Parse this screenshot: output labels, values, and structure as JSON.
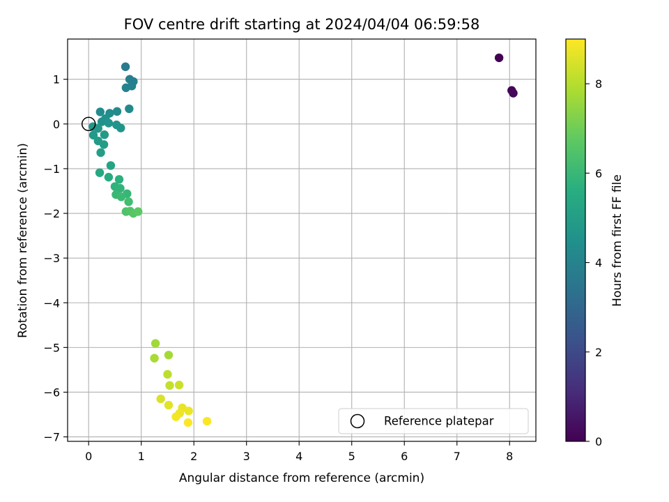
{
  "chart_data": {
    "type": "scatter",
    "title": "FOV centre drift starting at 2024/04/04 06:59:58",
    "xlabel": "Angular distance from reference (arcmin)",
    "ylabel": "Rotation from reference (arcmin)",
    "xlim": [
      -0.4,
      8.5
    ],
    "ylim": [
      -7.1,
      1.9
    ],
    "xticks": [
      "0",
      "1",
      "2",
      "3",
      "4",
      "5",
      "6",
      "7",
      "8"
    ],
    "yticks": [
      "1",
      "0",
      "−1",
      "−2",
      "−3",
      "−4",
      "−5",
      "−6",
      "−7"
    ],
    "grid": true,
    "colormap": "viridis",
    "colorbar": {
      "label": "Hours from first FF file",
      "range": [
        0,
        9
      ],
      "ticks": [
        "0",
        "2",
        "4",
        "6",
        "8"
      ]
    },
    "legend": {
      "location": "lower-right",
      "entries": [
        {
          "label": "Reference platepar",
          "marker": "open-circle"
        }
      ]
    },
    "reference_point": {
      "x": 0,
      "y": 0
    },
    "points": [
      {
        "x": 7.8,
        "y": 1.48,
        "hours": 0.0
      },
      {
        "x": 8.04,
        "y": 0.75,
        "hours": 0.1
      },
      {
        "x": 8.07,
        "y": 0.69,
        "hours": 0.15
      },
      {
        "x": 0.7,
        "y": 1.28,
        "hours": 3.7
      },
      {
        "x": 0.78,
        "y": 1.0,
        "hours": 3.8
      },
      {
        "x": 0.85,
        "y": 0.95,
        "hours": 3.85
      },
      {
        "x": 0.82,
        "y": 0.85,
        "hours": 3.9
      },
      {
        "x": 0.71,
        "y": 0.81,
        "hours": 3.95
      },
      {
        "x": 0.22,
        "y": 0.27,
        "hours": 4.3
      },
      {
        "x": 0.4,
        "y": 0.24,
        "hours": 4.35
      },
      {
        "x": 0.54,
        "y": 0.28,
        "hours": 4.3
      },
      {
        "x": 0.77,
        "y": 0.34,
        "hours": 4.25
      },
      {
        "x": 0.32,
        "y": 0.12,
        "hours": 4.5
      },
      {
        "x": 0.25,
        "y": 0.05,
        "hours": 4.55
      },
      {
        "x": 0.38,
        "y": 0.02,
        "hours": 4.6
      },
      {
        "x": 0.53,
        "y": -0.02,
        "hours": 4.6
      },
      {
        "x": 0.61,
        "y": -0.09,
        "hours": 4.65
      },
      {
        "x": 0.08,
        "y": -0.06,
        "hours": 4.7
      },
      {
        "x": 0.18,
        "y": -0.1,
        "hours": 4.75
      },
      {
        "x": 0.09,
        "y": -0.25,
        "hours": 4.8
      },
      {
        "x": 0.3,
        "y": -0.24,
        "hours": 4.85
      },
      {
        "x": 0.18,
        "y": -0.38,
        "hours": 4.9
      },
      {
        "x": 0.29,
        "y": -0.46,
        "hours": 4.95
      },
      {
        "x": 0.23,
        "y": -0.64,
        "hours": 5.0
      },
      {
        "x": 0.42,
        "y": -0.93,
        "hours": 5.2
      },
      {
        "x": 0.21,
        "y": -1.09,
        "hours": 5.4
      },
      {
        "x": 0.38,
        "y": -1.19,
        "hours": 5.5
      },
      {
        "x": 0.58,
        "y": -1.24,
        "hours": 5.7
      },
      {
        "x": 0.5,
        "y": -1.4,
        "hours": 5.8
      },
      {
        "x": 0.6,
        "y": -1.44,
        "hours": 5.85
      },
      {
        "x": 0.73,
        "y": -1.56,
        "hours": 5.95
      },
      {
        "x": 0.52,
        "y": -1.58,
        "hours": 6.0
      },
      {
        "x": 0.62,
        "y": -1.63,
        "hours": 6.05
      },
      {
        "x": 0.76,
        "y": -1.74,
        "hours": 6.2
      },
      {
        "x": 0.71,
        "y": -1.96,
        "hours": 6.4
      },
      {
        "x": 0.79,
        "y": -1.95,
        "hours": 6.5
      },
      {
        "x": 0.85,
        "y": -2.0,
        "hours": 6.6
      },
      {
        "x": 0.94,
        "y": -1.96,
        "hours": 6.7
      },
      {
        "x": 1.27,
        "y": -4.91,
        "hours": 7.7
      },
      {
        "x": 1.52,
        "y": -5.17,
        "hours": 7.75
      },
      {
        "x": 1.25,
        "y": -5.24,
        "hours": 7.8
      },
      {
        "x": 1.5,
        "y": -5.6,
        "hours": 8.1
      },
      {
        "x": 1.54,
        "y": -5.85,
        "hours": 8.2
      },
      {
        "x": 1.72,
        "y": -5.84,
        "hours": 8.3
      },
      {
        "x": 1.37,
        "y": -6.15,
        "hours": 8.5
      },
      {
        "x": 1.52,
        "y": -6.29,
        "hours": 8.6
      },
      {
        "x": 1.78,
        "y": -6.35,
        "hours": 8.7
      },
      {
        "x": 1.9,
        "y": -6.42,
        "hours": 8.75
      },
      {
        "x": 1.73,
        "y": -6.47,
        "hours": 8.8
      },
      {
        "x": 1.66,
        "y": -6.55,
        "hours": 8.85
      },
      {
        "x": 2.25,
        "y": -6.65,
        "hours": 8.95
      },
      {
        "x": 1.89,
        "y": -6.68,
        "hours": 9.0
      }
    ]
  }
}
